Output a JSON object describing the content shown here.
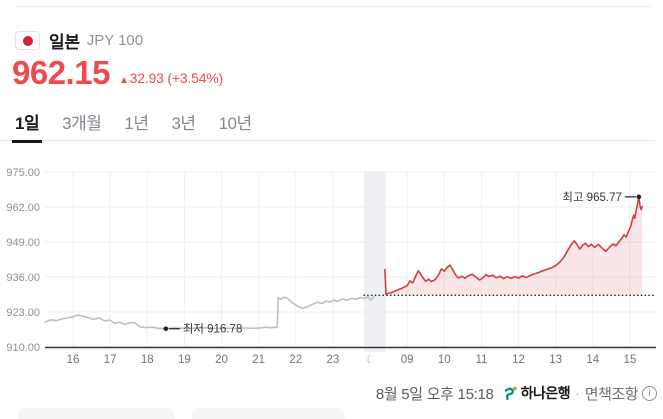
{
  "header": {
    "country": "일본",
    "unit": "JPY 100"
  },
  "price": {
    "value": "962.15",
    "arrow": "▲",
    "change": "32.93",
    "change_pct": "(+3.54%)"
  },
  "tabs": {
    "items": [
      {
        "label": "1일"
      },
      {
        "label": "3개월"
      },
      {
        "label": "1년"
      },
      {
        "label": "3년"
      },
      {
        "label": "10년"
      }
    ],
    "active_index": 0
  },
  "chart_data": {
    "type": "line",
    "y_axis": {
      "min": 910,
      "max": 975,
      "ticks": [
        975,
        962,
        949,
        936,
        923,
        910
      ],
      "tick_labels": [
        "975.00",
        "962.00",
        "949.00",
        "936.00",
        "923.00",
        "910.00"
      ]
    },
    "x_axis": {
      "tick_labels": [
        "16",
        "17",
        "18",
        "19",
        "20",
        "21",
        "22",
        "23",
        "☾",
        "09",
        "10",
        "11",
        "12",
        "13",
        "14",
        "15"
      ],
      "moon_index": 8
    },
    "prev_close": 929.22,
    "night_band": {
      "from_index": 7.84,
      "to_index": 8.42
    },
    "sessions": [
      {
        "name": "previous-day",
        "color": "#b9bfc9",
        "hour_to_index_offset": -16,
        "points": [
          [
            15.25,
            919.3
          ],
          [
            15.4,
            920.1
          ],
          [
            15.55,
            919.8
          ],
          [
            15.7,
            920.4
          ],
          [
            15.85,
            920.8
          ],
          [
            16.0,
            921.2
          ],
          [
            16.12,
            921.9
          ],
          [
            16.25,
            921.5
          ],
          [
            16.4,
            920.9
          ],
          [
            16.55,
            920.3
          ],
          [
            16.7,
            920.8
          ],
          [
            16.85,
            919.7
          ],
          [
            17.0,
            920.0
          ],
          [
            17.12,
            918.8
          ],
          [
            17.25,
            919.2
          ],
          [
            17.4,
            918.4
          ],
          [
            17.52,
            919.0
          ],
          [
            17.65,
            919.1
          ],
          [
            17.8,
            917.5
          ],
          [
            17.95,
            917.2
          ],
          [
            18.15,
            917.35
          ],
          [
            18.3,
            916.95
          ],
          [
            18.5,
            916.78
          ],
          [
            18.7,
            917.1
          ],
          [
            18.9,
            917.0
          ],
          [
            19.1,
            916.9
          ],
          [
            19.35,
            917.05
          ],
          [
            19.6,
            917.15
          ],
          [
            19.85,
            916.9
          ],
          [
            20.1,
            917.0
          ],
          [
            20.35,
            916.9
          ],
          [
            20.6,
            917.05
          ],
          [
            20.85,
            916.95
          ],
          [
            21.05,
            917.1
          ],
          [
            21.2,
            917.35
          ],
          [
            21.32,
            917.15
          ],
          [
            21.42,
            917.3
          ],
          [
            21.5,
            917.2
          ],
          [
            21.53,
            928.4
          ],
          [
            21.6,
            927.7
          ],
          [
            21.68,
            928.5
          ],
          [
            21.78,
            928.0
          ],
          [
            21.9,
            926.5
          ],
          [
            22.0,
            925.6
          ],
          [
            22.1,
            924.8
          ],
          [
            22.2,
            924.4
          ],
          [
            22.32,
            925.0
          ],
          [
            22.45,
            925.9
          ],
          [
            22.58,
            926.6
          ],
          [
            22.7,
            926.2
          ],
          [
            22.82,
            927.0
          ],
          [
            22.92,
            926.7
          ],
          [
            23.02,
            927.4
          ],
          [
            23.12,
            927.0
          ],
          [
            23.25,
            927.8
          ],
          [
            23.38,
            927.4
          ],
          [
            23.5,
            928.1
          ],
          [
            23.62,
            927.7
          ],
          [
            23.75,
            928.4
          ],
          [
            23.85,
            928.0
          ],
          [
            23.95,
            928.8
          ],
          [
            24.02,
            927.4
          ],
          [
            24.1,
            928.7
          ]
        ]
      },
      {
        "name": "today",
        "color": "#d43d3d",
        "fill": "rgba(214,61,61,0.13)",
        "hour_to_index_offset": 0,
        "points": [
          [
            8.4,
            938.8
          ],
          [
            8.43,
            929.6
          ],
          [
            8.6,
            930.4
          ],
          [
            8.75,
            931.2
          ],
          [
            8.9,
            932.1
          ],
          [
            9.0,
            932.8
          ],
          [
            9.08,
            934.6
          ],
          [
            9.15,
            933.8
          ],
          [
            9.22,
            936.0
          ],
          [
            9.3,
            938.3
          ],
          [
            9.36,
            937.2
          ],
          [
            9.42,
            935.8
          ],
          [
            9.5,
            934.4
          ],
          [
            9.58,
            935.2
          ],
          [
            9.65,
            934.3
          ],
          [
            9.75,
            935.0
          ],
          [
            9.85,
            936.8
          ],
          [
            9.92,
            939.0
          ],
          [
            10.0,
            938.2
          ],
          [
            10.08,
            939.6
          ],
          [
            10.15,
            940.4
          ],
          [
            10.22,
            938.9
          ],
          [
            10.3,
            936.9
          ],
          [
            10.38,
            935.6
          ],
          [
            10.48,
            936.3
          ],
          [
            10.55,
            935.5
          ],
          [
            10.65,
            936.5
          ],
          [
            10.75,
            937.0
          ],
          [
            10.85,
            936.0
          ],
          [
            10.95,
            934.9
          ],
          [
            11.05,
            935.8
          ],
          [
            11.12,
            936.9
          ],
          [
            11.2,
            936.2
          ],
          [
            11.3,
            936.7
          ],
          [
            11.4,
            935.7
          ],
          [
            11.5,
            936.3
          ],
          [
            11.6,
            935.4
          ],
          [
            11.7,
            936.1
          ],
          [
            11.8,
            935.5
          ],
          [
            11.9,
            936.2
          ],
          [
            12.0,
            935.6
          ],
          [
            12.1,
            936.4
          ],
          [
            12.2,
            935.8
          ],
          [
            12.3,
            936.5
          ],
          [
            12.42,
            937.1
          ],
          [
            12.52,
            937.6
          ],
          [
            12.62,
            938.1
          ],
          [
            12.75,
            938.8
          ],
          [
            12.9,
            939.5
          ],
          [
            13.0,
            940.3
          ],
          [
            13.1,
            941.4
          ],
          [
            13.2,
            943.0
          ],
          [
            13.28,
            944.8
          ],
          [
            13.35,
            946.5
          ],
          [
            13.42,
            948.1
          ],
          [
            13.5,
            949.4
          ],
          [
            13.58,
            948.0
          ],
          [
            13.65,
            946.4
          ],
          [
            13.72,
            947.7
          ],
          [
            13.8,
            948.5
          ],
          [
            13.88,
            947.3
          ],
          [
            13.96,
            948.2
          ],
          [
            14.05,
            947.0
          ],
          [
            14.15,
            948.1
          ],
          [
            14.25,
            946.7
          ],
          [
            14.35,
            945.5
          ],
          [
            14.45,
            947.1
          ],
          [
            14.55,
            948.3
          ],
          [
            14.62,
            947.6
          ],
          [
            14.7,
            949.0
          ],
          [
            14.78,
            950.4
          ],
          [
            14.84,
            951.7
          ],
          [
            14.9,
            950.9
          ],
          [
            14.96,
            953.0
          ],
          [
            15.02,
            954.8
          ],
          [
            15.07,
            957.5
          ],
          [
            15.1,
            959.0
          ],
          [
            15.13,
            957.8
          ],
          [
            15.17,
            961.0
          ],
          [
            15.21,
            963.5
          ],
          [
            15.24,
            965.77
          ],
          [
            15.27,
            962.5
          ],
          [
            15.3,
            961.0
          ],
          [
            15.33,
            962.15
          ]
        ]
      }
    ],
    "annotations": [
      {
        "id": "low",
        "label": "최저 916.78",
        "hour": 18.5,
        "value": 916.78,
        "session": 0,
        "side": "right"
      },
      {
        "id": "high",
        "label": "최고 965.77",
        "hour": 15.24,
        "value": 965.77,
        "session": 1,
        "side": "left"
      }
    ]
  },
  "footer": {
    "timestamp": "8월 5일 오후 15:18",
    "bank": "하나은행",
    "separator": "·",
    "disclaimer": "면책조항",
    "info_icon": "i"
  },
  "colors": {
    "accent_red": "#ee4b50",
    "chart_red": "#d43d3d",
    "chart_gray": "#b9bfc9",
    "night_band": "#edeff5",
    "flag_red": "#ce2338",
    "hana_teal": "#008d87",
    "hana_green": "#86bc25"
  }
}
